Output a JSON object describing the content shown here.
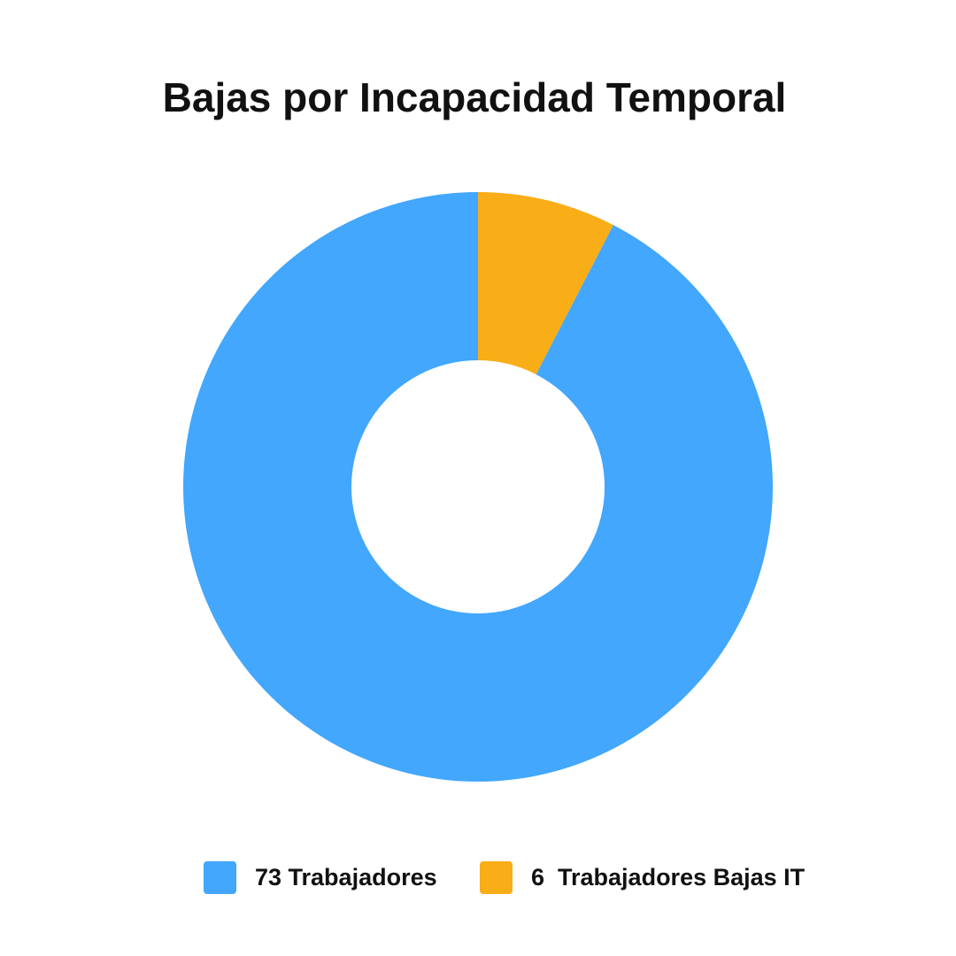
{
  "chart_data": {
    "type": "doughnut",
    "title": "Bajas por Incapacidad Temporal",
    "categories": [
      "73 Trabajadores",
      "6  Trabajadores Bajas IT"
    ],
    "values": [
      73,
      6
    ],
    "colors": [
      "#42a7fd",
      "#f9ad17"
    ]
  }
}
